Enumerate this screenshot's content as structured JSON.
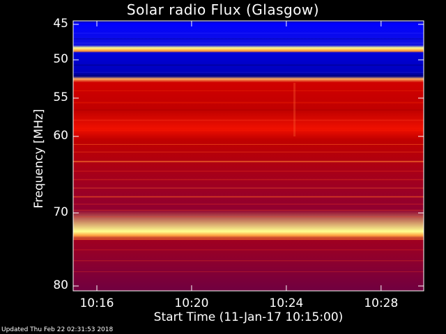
{
  "title": "Solar radio Flux (Glasgow)",
  "footer": "Updated Thu Feb 22 02:31:53 2018",
  "chart_data": {
    "type": "heatmap",
    "title": "Solar radio Flux (Glasgow)",
    "xlabel": "Start Time (11-Jan-17 10:15:00)",
    "ylabel": "Frequency [MHz]",
    "x_ticks": [
      "10:16",
      "10:20",
      "10:24",
      "10:28"
    ],
    "x_tick_minutes": [
      1,
      5,
      9,
      13
    ],
    "x_range_minutes": [
      0,
      14.8
    ],
    "y_ticks": [
      45,
      50,
      55,
      60,
      70,
      80
    ],
    "y_range_mhz": [
      44.5,
      80.5
    ],
    "y_scale": "inverted (frequency increasing downward), compressed toward high frequencies",
    "colormap": [
      "#00006e",
      "#0000ff",
      "#b00000",
      "#ff2000",
      "#ff9030",
      "#ffff90"
    ],
    "intensity_bands": [
      {
        "from_mhz": 44.5,
        "to_mhz": 45.3,
        "level": "low"
      },
      {
        "from_mhz": 45.3,
        "to_mhz": 48.4,
        "level": "low-medium"
      },
      {
        "from_mhz": 48.4,
        "to_mhz": 49.2,
        "level": "very high"
      },
      {
        "from_mhz": 49.2,
        "to_mhz": 52.4,
        "level": "low-medium"
      },
      {
        "from_mhz": 52.4,
        "to_mhz": 53.0,
        "level": "high"
      },
      {
        "from_mhz": 53.0,
        "to_mhz": 60.5,
        "level": "medium-high"
      },
      {
        "from_mhz": 60.5,
        "to_mhz": 71.5,
        "level": "medium"
      },
      {
        "from_mhz": 71.5,
        "to_mhz": 72.2,
        "level": "very high"
      },
      {
        "from_mhz": 72.2,
        "to_mhz": 80.5,
        "level": "medium-low"
      }
    ],
    "grid": false,
    "legend": "none"
  }
}
